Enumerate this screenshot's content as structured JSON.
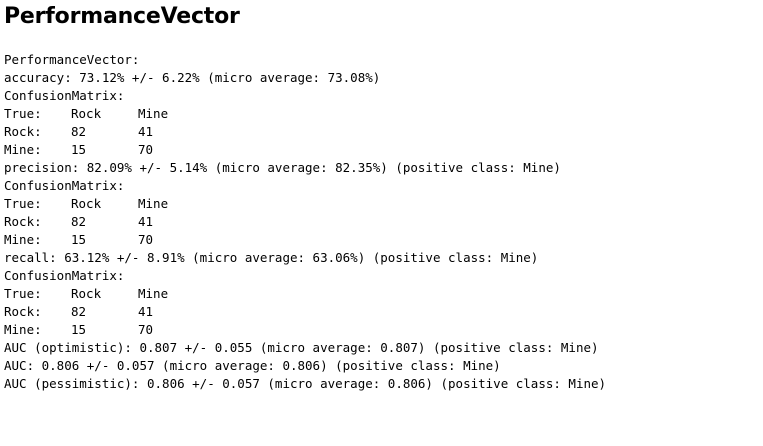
{
  "title": "PerformanceVector",
  "header": "PerformanceVector:",
  "accuracy": {
    "text": "accuracy: 73.12% +/- 6.22% (micro average: 73.08%)",
    "matrix_title": "ConfusionMatrix:",
    "header_row": [
      "True:",
      "Rock",
      "Mine"
    ],
    "rows": [
      [
        "Rock:",
        "82",
        "41"
      ],
      [
        "Mine:",
        "15",
        "70"
      ]
    ]
  },
  "precision": {
    "text": "precision: 82.09% +/- 5.14% (micro average: 82.35%) (positive class: Mine)",
    "matrix_title": "ConfusionMatrix:",
    "header_row": [
      "True:",
      "Rock",
      "Mine"
    ],
    "rows": [
      [
        "Rock:",
        "82",
        "41"
      ],
      [
        "Mine:",
        "15",
        "70"
      ]
    ]
  },
  "recall": {
    "text": "recall: 63.12% +/- 8.91% (micro average: 63.06%) (positive class: Mine)",
    "matrix_title": "ConfusionMatrix:",
    "header_row": [
      "True:",
      "Rock",
      "Mine"
    ],
    "rows": [
      [
        "Rock:",
        "82",
        "41"
      ],
      [
        "Mine:",
        "15",
        "70"
      ]
    ]
  },
  "auc": [
    "AUC (optimistic): 0.807 +/- 0.055 (micro average: 0.807) (positive class: Mine)",
    "AUC: 0.806 +/- 0.057 (micro average: 0.806) (positive class: Mine)",
    "AUC (pessimistic): 0.806 +/- 0.057 (micro average: 0.806) (positive class: Mine)"
  ]
}
